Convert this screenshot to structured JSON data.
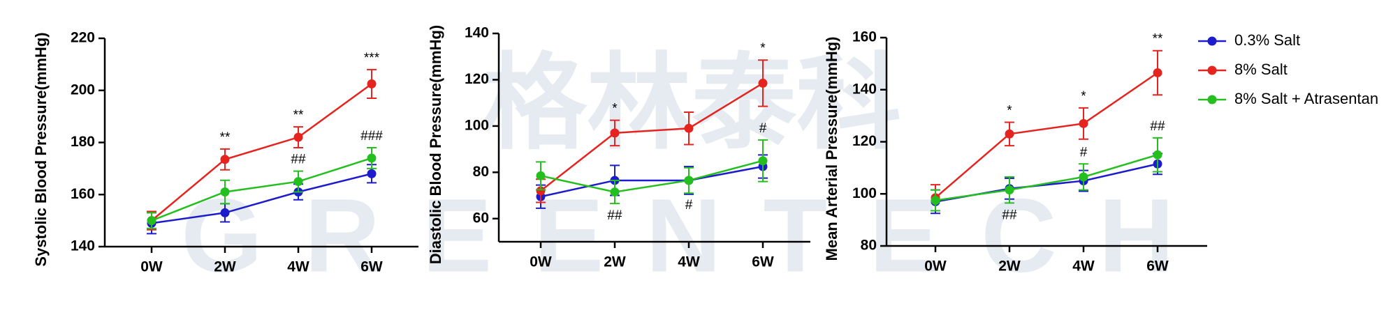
{
  "watermark": [
    "格林泰科",
    "GREENTECH"
  ],
  "chart_data": [
    {
      "type": "line",
      "ylabel": "Systolic Blood Pressure(mmHg)",
      "categories": [
        "0W",
        "2W",
        "4W",
        "6W"
      ],
      "ylim": [
        140,
        220
      ],
      "yticks": [
        140,
        160,
        180,
        200,
        220
      ],
      "series": [
        {
          "name": "0.3% Salt",
          "color": "#1c1ccc",
          "values": [
            149,
            153,
            161,
            168
          ],
          "errors": [
            4,
            3.5,
            3,
            3.5
          ],
          "annotations": [
            null,
            null,
            null,
            null
          ]
        },
        {
          "name": "8% Salt",
          "color": "#e52420",
          "values": [
            150,
            173.5,
            182,
            202.5
          ],
          "errors": [
            3.5,
            4,
            4,
            5.5
          ],
          "annotations": [
            null,
            "**",
            "**",
            "***"
          ]
        },
        {
          "name": "8% Salt + Atrasentan",
          "color": "#24bf1f",
          "values": [
            150,
            161,
            165,
            174
          ],
          "errors": [
            3,
            4.5,
            4,
            4
          ],
          "annotations": [
            null,
            null,
            "##",
            "###"
          ]
        }
      ]
    },
    {
      "type": "line",
      "ylabel": "Diastolic Blood Pressure(mmHg)",
      "categories": [
        "0W",
        "2W",
        "4W",
        "6W"
      ],
      "ylim": [
        50,
        140
      ],
      "yticks": [
        60,
        80,
        100,
        120,
        140
      ],
      "series": [
        {
          "color": "#1c1ccc",
          "values": [
            69.5,
            76.5,
            76.5,
            82.5
          ],
          "errors": [
            5,
            6.5,
            6,
            5
          ],
          "annotations": [
            null,
            null,
            null,
            null
          ]
        },
        {
          "color": "#e52420",
          "values": [
            72,
            97,
            99,
            118.5
          ],
          "errors": [
            5,
            5.5,
            7,
            10
          ],
          "annotations": [
            null,
            "*",
            null,
            "*"
          ]
        },
        {
          "color": "#24bf1f",
          "values": [
            78.5,
            71.5,
            76.5,
            85
          ],
          "errors": [
            6,
            5,
            5.5,
            9
          ],
          "annotations": [
            null,
            "##",
            "#",
            "#"
          ]
        }
      ]
    },
    {
      "type": "line",
      "ylabel": "Mean Arterial Pressure(mmHg)",
      "categories": [
        "0W",
        "2W",
        "4W",
        "6W"
      ],
      "ylim": [
        80,
        160
      ],
      "yticks": [
        80,
        100,
        120,
        140,
        160
      ],
      "series": [
        {
          "color": "#1c1ccc",
          "values": [
            97,
            102,
            105,
            111.5
          ],
          "errors": [
            4.5,
            4,
            4,
            4
          ],
          "annotations": [
            null,
            null,
            null,
            null
          ]
        },
        {
          "color": "#e52420",
          "values": [
            98.5,
            123,
            127,
            146.5
          ],
          "errors": [
            5,
            4.5,
            6,
            8.5
          ],
          "annotations": [
            null,
            "*",
            "*",
            "**"
          ]
        },
        {
          "color": "#24bf1f",
          "values": [
            97.5,
            101.5,
            106.5,
            115
          ],
          "errors": [
            4,
            5,
            5,
            6.5
          ],
          "annotations": [
            null,
            "##",
            "#",
            "##"
          ]
        }
      ]
    }
  ]
}
